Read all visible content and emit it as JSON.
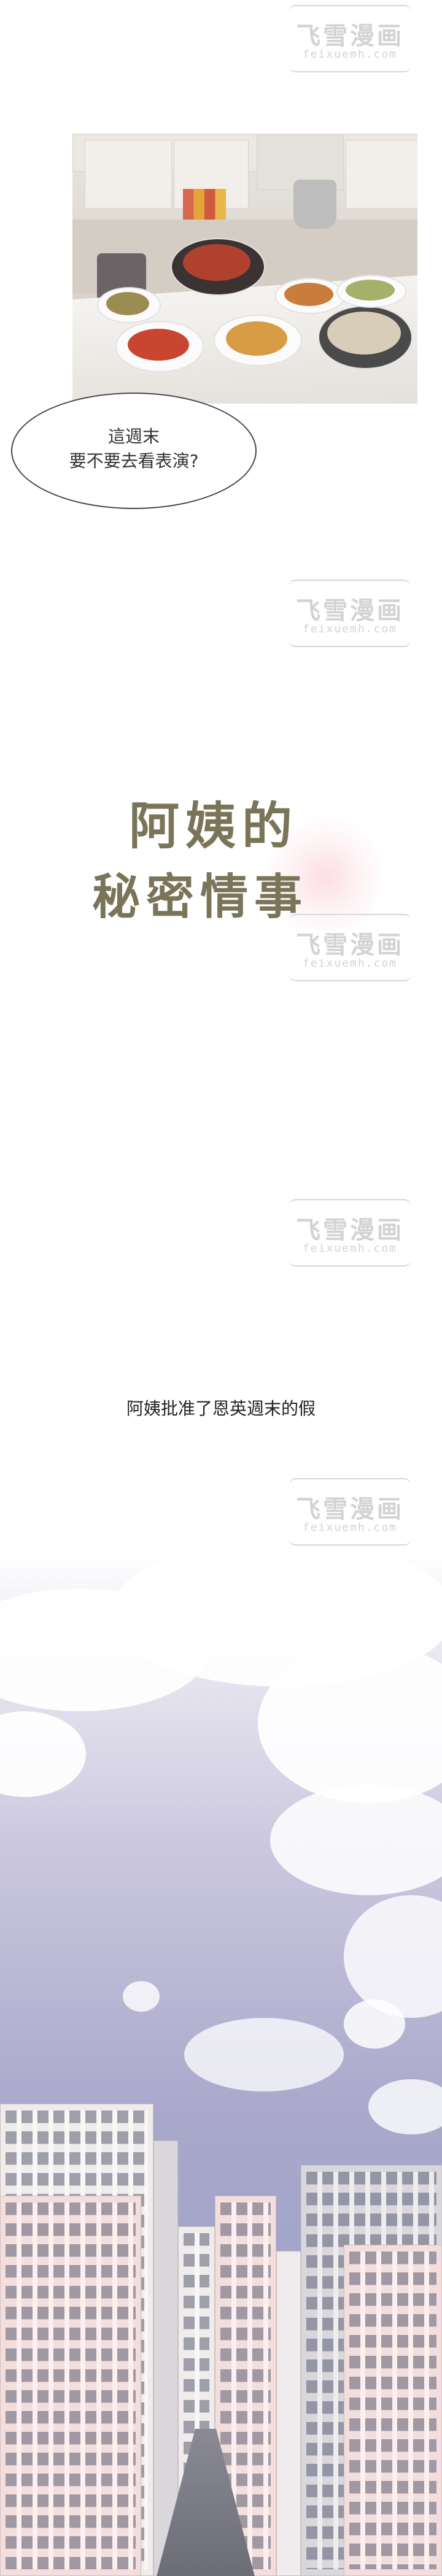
{
  "watermark": {
    "chinese": "飞雪漫画",
    "domain": "feixuemh.com"
  },
  "scene_kitchen": {
    "icon": "kitchen-dining-illustration"
  },
  "speech": {
    "line1": "這週末",
    "line2": "要不要去看表演?"
  },
  "title": {
    "line1": "阿姨的",
    "line2": "秘密情事",
    "color": "#7a7458"
  },
  "narration": {
    "text": "阿姨批准了恩英週末的假"
  },
  "scene_city": {
    "icon": "city-skyline-illustration"
  }
}
